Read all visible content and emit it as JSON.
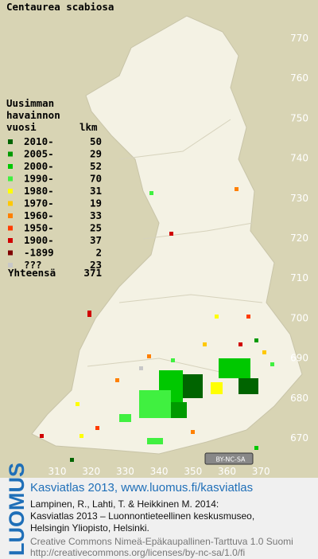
{
  "title": "Centaurea scabiosa",
  "legend": {
    "heading": [
      "Uusimman",
      "havainnon",
      "vuosi"
    ],
    "count_heading": "lkm",
    "entries": [
      {
        "label": "2010-",
        "count": 50,
        "color": "#006400"
      },
      {
        "label": "2005-",
        "count": 29,
        "color": "#009a00"
      },
      {
        "label": "2000-",
        "count": 52,
        "color": "#00c800"
      },
      {
        "label": "1990-",
        "count": 70,
        "color": "#40f040"
      },
      {
        "label": "1980-",
        "count": 31,
        "color": "#ffff00"
      },
      {
        "label": "1970-",
        "count": 19,
        "color": "#ffc800"
      },
      {
        "label": "1960-",
        "count": 33,
        "color": "#ff8000"
      },
      {
        "label": "1950-",
        "count": 25,
        "color": "#ff3c00"
      },
      {
        "label": "1900-",
        "count": 37,
        "color": "#d00000"
      },
      {
        "label": "-1899",
        "count": 2,
        "color": "#800000"
      },
      {
        "label": "???",
        "count": 23,
        "color": "#c8c8c8"
      }
    ],
    "total_label": "Yhteensä",
    "total": 371
  },
  "map": {
    "xticks": [
      310,
      320,
      330,
      340,
      350,
      360,
      370
    ],
    "yticks": [
      770,
      760,
      750,
      740,
      730,
      720,
      710,
      700,
      690,
      680,
      670
    ]
  },
  "badge": "BY-NC-SA",
  "footer": {
    "brand": "LUOMUS",
    "headline": "Kasviatlas 2013, www.luomus.fi/kasviatlas",
    "citation": [
      "Lampinen, R., Lahti, T. & Heikkinen M. 2014:",
      "Kasviatlas 2013 – Luonnontieteellinen keskusmuseo,",
      "Helsingin Yliopisto, Helsinki."
    ],
    "license": [
      "Creative Commons Nimeä-Epäkaupallinen-Tarttuva 1.0 Suomi",
      "http://creativecommons.org/licenses/by-nc-sa/1.0/fi"
    ]
  }
}
